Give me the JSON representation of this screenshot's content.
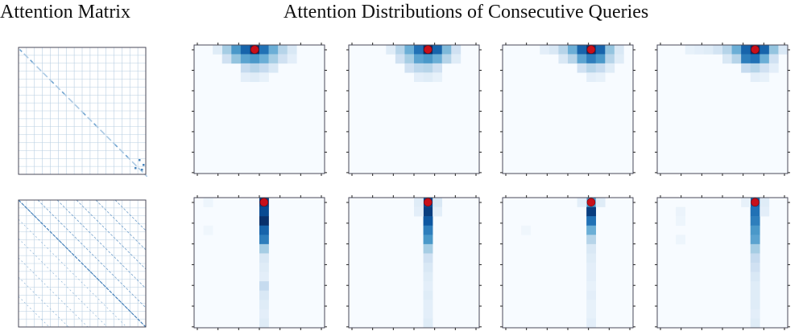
{
  "figure": {
    "left_title": "Attention Matrix",
    "right_title": "Attention Distributions of Consecutive Queries"
  },
  "colors": {
    "frame": "#4a4a5a",
    "grid": "#b9cfe2",
    "query_marker": "#c8101a",
    "cmap": [
      "#f7fbff",
      "#deebf7",
      "#c6dbef",
      "#9ecae1",
      "#6baed6",
      "#4292c6",
      "#2171b5",
      "#08519c",
      "#08306b"
    ]
  },
  "chart_data": [
    {
      "type": "heatmap",
      "title": "Attention Matrix",
      "row": 1,
      "pattern": "diagonal (local) attention, sparse",
      "grid_blocks": 16,
      "values": "near-zero everywhere except faint diagonal band"
    },
    {
      "type": "heatmap",
      "title": "Attention Matrix",
      "row": 2,
      "pattern": "diagonal plus multiple parallel off-diagonal stripes",
      "grid_blocks": 16,
      "values": "near-zero everywhere except faint diagonal stripes"
    },
    {
      "type": "heatmap",
      "row": 1,
      "query": {
        "row": 0,
        "col": 6
      },
      "rows": 14,
      "cols": 14,
      "cells": [
        {
          "r": 0,
          "c": 3,
          "v": 0.35
        },
        {
          "r": 0,
          "c": 4,
          "v": 0.6
        },
        {
          "r": 0,
          "c": 5,
          "v": 0.8
        },
        {
          "r": 0,
          "c": 6,
          "v": 1.0
        },
        {
          "r": 0,
          "c": 7,
          "v": 0.75
        },
        {
          "r": 0,
          "c": 8,
          "v": 0.5
        },
        {
          "r": 0,
          "c": 9,
          "v": 0.3
        },
        {
          "r": 0,
          "c": 10,
          "v": 0.15
        },
        {
          "r": 0,
          "c": 2,
          "v": 0.12
        },
        {
          "r": 1,
          "c": 3,
          "v": 0.2
        },
        {
          "r": 1,
          "c": 4,
          "v": 0.4
        },
        {
          "r": 1,
          "c": 5,
          "v": 0.55
        },
        {
          "r": 1,
          "c": 6,
          "v": 0.6
        },
        {
          "r": 1,
          "c": 7,
          "v": 0.5
        },
        {
          "r": 1,
          "c": 8,
          "v": 0.35
        },
        {
          "r": 1,
          "c": 9,
          "v": 0.2
        },
        {
          "r": 1,
          "c": 10,
          "v": 0.1
        },
        {
          "r": 2,
          "c": 5,
          "v": 0.25
        },
        {
          "r": 2,
          "c": 6,
          "v": 0.3
        },
        {
          "r": 2,
          "c": 7,
          "v": 0.25
        },
        {
          "r": 2,
          "c": 8,
          "v": 0.15
        },
        {
          "r": 3,
          "c": 5,
          "v": 0.1
        },
        {
          "r": 3,
          "c": 6,
          "v": 0.12
        },
        {
          "r": 3,
          "c": 7,
          "v": 0.08
        }
      ]
    },
    {
      "type": "heatmap",
      "row": 1,
      "query": {
        "row": 0,
        "col": 8
      },
      "rows": 14,
      "cols": 14,
      "cells": [
        {
          "r": 0,
          "c": 5,
          "v": 0.3
        },
        {
          "r": 0,
          "c": 6,
          "v": 0.5
        },
        {
          "r": 0,
          "c": 7,
          "v": 0.75
        },
        {
          "r": 0,
          "c": 8,
          "v": 1.0
        },
        {
          "r": 0,
          "c": 9,
          "v": 0.8
        },
        {
          "r": 0,
          "c": 10,
          "v": 0.45
        },
        {
          "r": 0,
          "c": 11,
          "v": 0.2
        },
        {
          "r": 0,
          "c": 4,
          "v": 0.12
        },
        {
          "r": 1,
          "c": 5,
          "v": 0.2
        },
        {
          "r": 1,
          "c": 6,
          "v": 0.35
        },
        {
          "r": 1,
          "c": 7,
          "v": 0.55
        },
        {
          "r": 1,
          "c": 8,
          "v": 0.6
        },
        {
          "r": 1,
          "c": 9,
          "v": 0.5
        },
        {
          "r": 1,
          "c": 10,
          "v": 0.3
        },
        {
          "r": 1,
          "c": 11,
          "v": 0.12
        },
        {
          "r": 2,
          "c": 6,
          "v": 0.2
        },
        {
          "r": 2,
          "c": 7,
          "v": 0.28
        },
        {
          "r": 2,
          "c": 8,
          "v": 0.3
        },
        {
          "r": 2,
          "c": 9,
          "v": 0.2
        },
        {
          "r": 3,
          "c": 7,
          "v": 0.1
        },
        {
          "r": 3,
          "c": 8,
          "v": 0.12
        },
        {
          "r": 3,
          "c": 9,
          "v": 0.08
        }
      ]
    },
    {
      "type": "heatmap",
      "row": 1,
      "query": {
        "row": 0,
        "col": 9
      },
      "rows": 14,
      "cols": 14,
      "cells": [
        {
          "r": 0,
          "c": 4,
          "v": 0.1
        },
        {
          "r": 0,
          "c": 5,
          "v": 0.15
        },
        {
          "r": 0,
          "c": 6,
          "v": 0.3
        },
        {
          "r": 0,
          "c": 7,
          "v": 0.5
        },
        {
          "r": 0,
          "c": 8,
          "v": 0.8
        },
        {
          "r": 0,
          "c": 9,
          "v": 1.0
        },
        {
          "r": 0,
          "c": 10,
          "v": 0.8
        },
        {
          "r": 0,
          "c": 11,
          "v": 0.4
        },
        {
          "r": 0,
          "c": 12,
          "v": 0.15
        },
        {
          "r": 1,
          "c": 6,
          "v": 0.15
        },
        {
          "r": 1,
          "c": 7,
          "v": 0.3
        },
        {
          "r": 1,
          "c": 8,
          "v": 0.55
        },
        {
          "r": 1,
          "c": 9,
          "v": 0.7
        },
        {
          "r": 1,
          "c": 10,
          "v": 0.6
        },
        {
          "r": 1,
          "c": 11,
          "v": 0.3
        },
        {
          "r": 1,
          "c": 12,
          "v": 0.12
        },
        {
          "r": 2,
          "c": 8,
          "v": 0.2
        },
        {
          "r": 2,
          "c": 9,
          "v": 0.3
        },
        {
          "r": 2,
          "c": 10,
          "v": 0.25
        },
        {
          "r": 2,
          "c": 11,
          "v": 0.12
        },
        {
          "r": 3,
          "c": 9,
          "v": 0.1
        },
        {
          "r": 3,
          "c": 10,
          "v": 0.08
        }
      ]
    },
    {
      "type": "heatmap",
      "row": 1,
      "query": {
        "row": 0,
        "col": 10
      },
      "rows": 14,
      "cols": 14,
      "cells": [
        {
          "r": 0,
          "c": 3,
          "v": 0.08
        },
        {
          "r": 0,
          "c": 4,
          "v": 0.1
        },
        {
          "r": 0,
          "c": 5,
          "v": 0.12
        },
        {
          "r": 0,
          "c": 6,
          "v": 0.18
        },
        {
          "r": 0,
          "c": 7,
          "v": 0.3
        },
        {
          "r": 0,
          "c": 8,
          "v": 0.5
        },
        {
          "r": 0,
          "c": 9,
          "v": 0.8
        },
        {
          "r": 0,
          "c": 10,
          "v": 1.0
        },
        {
          "r": 0,
          "c": 11,
          "v": 0.8
        },
        {
          "r": 0,
          "c": 12,
          "v": 0.4
        },
        {
          "r": 0,
          "c": 13,
          "v": 0.15
        },
        {
          "r": 1,
          "c": 7,
          "v": 0.15
        },
        {
          "r": 1,
          "c": 8,
          "v": 0.3
        },
        {
          "r": 1,
          "c": 9,
          "v": 0.7
        },
        {
          "r": 1,
          "c": 10,
          "v": 0.75
        },
        {
          "r": 1,
          "c": 11,
          "v": 0.5
        },
        {
          "r": 1,
          "c": 12,
          "v": 0.2
        },
        {
          "r": 2,
          "c": 9,
          "v": 0.25
        },
        {
          "r": 2,
          "c": 10,
          "v": 0.3
        },
        {
          "r": 2,
          "c": 11,
          "v": 0.2
        },
        {
          "r": 2,
          "c": 12,
          "v": 0.1
        },
        {
          "r": 3,
          "c": 10,
          "v": 0.1
        },
        {
          "r": 3,
          "c": 11,
          "v": 0.08
        }
      ]
    },
    {
      "type": "heatmap",
      "row": 2,
      "query": {
        "row": 0,
        "col": 7
      },
      "rows": 14,
      "cols": 14,
      "cells": [
        {
          "r": 0,
          "c": 7,
          "v": 0.95
        },
        {
          "r": 1,
          "c": 7,
          "v": 0.9
        },
        {
          "r": 2,
          "c": 7,
          "v": 1.0
        },
        {
          "r": 3,
          "c": 7,
          "v": 0.8
        },
        {
          "r": 4,
          "c": 7,
          "v": 0.7
        },
        {
          "r": 5,
          "c": 7,
          "v": 0.35
        },
        {
          "r": 6,
          "c": 7,
          "v": 0.15
        },
        {
          "r": 7,
          "c": 7,
          "v": 0.12
        },
        {
          "r": 8,
          "c": 7,
          "v": 0.1
        },
        {
          "r": 9,
          "c": 7,
          "v": 0.25
        },
        {
          "r": 10,
          "c": 7,
          "v": 0.15
        },
        {
          "r": 11,
          "c": 7,
          "v": 0.12
        },
        {
          "r": 12,
          "c": 7,
          "v": 0.1
        },
        {
          "r": 13,
          "c": 7,
          "v": 0.12
        },
        {
          "r": 0,
          "c": 1,
          "v": 0.05
        },
        {
          "r": 3,
          "c": 1,
          "v": 0.04
        }
      ]
    },
    {
      "type": "heatmap",
      "row": 2,
      "query": {
        "row": 0,
        "col": 8
      },
      "rows": 14,
      "cols": 14,
      "cells": [
        {
          "r": 0,
          "c": 8,
          "v": 0.9
        },
        {
          "r": 1,
          "c": 8,
          "v": 0.95
        },
        {
          "r": 2,
          "c": 8,
          "v": 0.85
        },
        {
          "r": 3,
          "c": 8,
          "v": 0.7
        },
        {
          "r": 4,
          "c": 8,
          "v": 0.6
        },
        {
          "r": 5,
          "c": 8,
          "v": 0.35
        },
        {
          "r": 6,
          "c": 8,
          "v": 0.2
        },
        {
          "r": 7,
          "c": 8,
          "v": 0.15
        },
        {
          "r": 8,
          "c": 8,
          "v": 0.12
        },
        {
          "r": 9,
          "c": 8,
          "v": 0.1
        },
        {
          "r": 10,
          "c": 8,
          "v": 0.12
        },
        {
          "r": 11,
          "c": 8,
          "v": 0.1
        },
        {
          "r": 12,
          "c": 8,
          "v": 0.1
        },
        {
          "r": 13,
          "c": 8,
          "v": 0.12
        },
        {
          "r": 0,
          "c": 7,
          "v": 0.12
        },
        {
          "r": 1,
          "c": 7,
          "v": 0.1
        },
        {
          "r": 0,
          "c": 9,
          "v": 0.15
        },
        {
          "r": 1,
          "c": 9,
          "v": 0.1
        }
      ]
    },
    {
      "type": "heatmap",
      "row": 2,
      "query": {
        "row": 0,
        "col": 9
      },
      "rows": 14,
      "cols": 14,
      "cells": [
        {
          "r": 0,
          "c": 9,
          "v": 0.6
        },
        {
          "r": 1,
          "c": 9,
          "v": 0.95
        },
        {
          "r": 2,
          "c": 9,
          "v": 0.75
        },
        {
          "r": 3,
          "c": 9,
          "v": 0.5
        },
        {
          "r": 4,
          "c": 9,
          "v": 0.3
        },
        {
          "r": 5,
          "c": 9,
          "v": 0.15
        },
        {
          "r": 6,
          "c": 9,
          "v": 0.12
        },
        {
          "r": 7,
          "c": 9,
          "v": 0.1
        },
        {
          "r": 8,
          "c": 9,
          "v": 0.1
        },
        {
          "r": 9,
          "c": 9,
          "v": 0.08
        },
        {
          "r": 10,
          "c": 9,
          "v": 0.1
        },
        {
          "r": 11,
          "c": 9,
          "v": 0.08
        },
        {
          "r": 12,
          "c": 9,
          "v": 0.08
        },
        {
          "r": 13,
          "c": 9,
          "v": 0.1
        },
        {
          "r": 0,
          "c": 8,
          "v": 0.1
        },
        {
          "r": 0,
          "c": 10,
          "v": 0.12
        },
        {
          "r": 3,
          "c": 2,
          "v": 0.04
        }
      ]
    },
    {
      "type": "heatmap",
      "row": 2,
      "query": {
        "row": 0,
        "col": 10
      },
      "rows": 14,
      "cols": 14,
      "cells": [
        {
          "r": 0,
          "c": 10,
          "v": 0.8
        },
        {
          "r": 1,
          "c": 10,
          "v": 0.75
        },
        {
          "r": 2,
          "c": 10,
          "v": 0.7
        },
        {
          "r": 3,
          "c": 10,
          "v": 0.6
        },
        {
          "r": 4,
          "c": 10,
          "v": 0.55
        },
        {
          "r": 5,
          "c": 10,
          "v": 0.35
        },
        {
          "r": 6,
          "c": 10,
          "v": 0.25
        },
        {
          "r": 7,
          "c": 10,
          "v": 0.2
        },
        {
          "r": 8,
          "c": 10,
          "v": 0.15
        },
        {
          "r": 9,
          "c": 10,
          "v": 0.12
        },
        {
          "r": 10,
          "c": 10,
          "v": 0.12
        },
        {
          "r": 11,
          "c": 10,
          "v": 0.12
        },
        {
          "r": 12,
          "c": 10,
          "v": 0.1
        },
        {
          "r": 13,
          "c": 10,
          "v": 0.12
        },
        {
          "r": 0,
          "c": 11,
          "v": 0.12
        },
        {
          "r": 1,
          "c": 11,
          "v": 0.1
        },
        {
          "r": 0,
          "c": 9,
          "v": 0.08
        },
        {
          "r": 1,
          "c": 2,
          "v": 0.06
        },
        {
          "r": 2,
          "c": 2,
          "v": 0.05
        },
        {
          "r": 4,
          "c": 2,
          "v": 0.05
        }
      ]
    }
  ]
}
